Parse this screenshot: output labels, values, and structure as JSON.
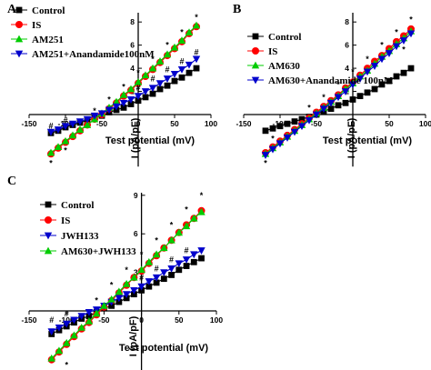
{
  "figure": {
    "panels": [
      "A",
      "B",
      "C"
    ]
  },
  "chart_data": [
    {
      "panel": "A",
      "type": "line",
      "xlabel": "Test potential (mV)",
      "ylabel": "I (pA/pF)",
      "xticks": [
        -150,
        -100,
        -50,
        0,
        50,
        100
      ],
      "yticks": [
        2,
        4,
        6,
        8
      ],
      "xlim": [
        -150,
        100
      ],
      "ylim": [
        -4.5,
        8.8
      ],
      "x": [
        -120,
        -110,
        -100,
        -90,
        -80,
        -70,
        -60,
        -50,
        -40,
        -30,
        -20,
        -10,
        0,
        10,
        20,
        30,
        40,
        50,
        60,
        70,
        80
      ],
      "series": [
        {
          "name": "Control",
          "color": "#000000",
          "marker": "square",
          "values": [
            -1.6,
            -1.4,
            -1.1,
            -0.9,
            -0.7,
            -0.5,
            -0.3,
            -0.1,
            0.2,
            0.4,
            0.6,
            0.9,
            1.2,
            1.5,
            1.8,
            2.2,
            2.5,
            2.9,
            3.2,
            3.6,
            4.0
          ]
        },
        {
          "name": "IS",
          "color": "#ff0000",
          "marker": "circle",
          "values": [
            -3.4,
            -2.9,
            -2.4,
            -1.9,
            -1.4,
            -0.9,
            -0.4,
            0.0,
            0.5,
            1.0,
            1.6,
            2.1,
            2.7,
            3.3,
            3.9,
            4.5,
            5.1,
            5.7,
            6.3,
            7.0,
            7.6
          ]
        },
        {
          "name": "AM251",
          "color": "#00cc00",
          "marker": "triangle-up",
          "values": [
            -3.3,
            -2.8,
            -2.3,
            -1.8,
            -1.3,
            -0.9,
            -0.4,
            0.1,
            0.6,
            1.1,
            1.7,
            2.2,
            2.8,
            3.4,
            4.0,
            4.6,
            5.2,
            5.8,
            6.4,
            7.1,
            7.7
          ]
        },
        {
          "name": "AM251+Anandamide100nM",
          "color": "#0000cc",
          "marker": "triangle-down",
          "values": [
            -1.5,
            -1.3,
            -1.0,
            -0.8,
            -0.6,
            -0.4,
            -0.1,
            0.1,
            0.4,
            0.7,
            1.0,
            1.3,
            1.6,
            2.0,
            2.3,
            2.7,
            3.1,
            3.5,
            3.9,
            4.3,
            4.8
          ]
        }
      ],
      "annotations": [
        {
          "text": "#",
          "x": -120,
          "y": -1.0
        },
        {
          "text": "#",
          "x": -100,
          "y": -0.5
        },
        {
          "text": "*",
          "x": -120,
          "y": -4.2
        },
        {
          "text": "*",
          "x": -100,
          "y": -3.1
        },
        {
          "text": "*",
          "x": -60,
          "y": 0.3
        },
        {
          "text": "*",
          "x": -40,
          "y": 1.3
        },
        {
          "text": "*",
          "x": -20,
          "y": 2.4
        },
        {
          "text": "*",
          "x": 0,
          "y": 3.6
        },
        {
          "text": "*",
          "x": 20,
          "y": 4.8
        },
        {
          "text": "*",
          "x": 40,
          "y": 6.0
        },
        {
          "text": "*",
          "x": 60,
          "y": 7.1
        },
        {
          "text": "*",
          "x": 80,
          "y": 8.4
        },
        {
          "text": "#",
          "x": 0,
          "y": 2.3
        },
        {
          "text": "#",
          "x": 20,
          "y": 3.1
        },
        {
          "text": "#",
          "x": 40,
          "y": 3.9
        },
        {
          "text": "#",
          "x": 60,
          "y": 4.6
        },
        {
          "text": "#",
          "x": 80,
          "y": 5.4
        }
      ]
    },
    {
      "panel": "B",
      "type": "line",
      "xlabel": "Test potential (mV)",
      "ylabel": "I (pA/pF)",
      "xticks": [
        -150,
        -100,
        -50,
        0,
        50,
        100
      ],
      "yticks": [
        2,
        4,
        6,
        8
      ],
      "xlim": [
        -150,
        100
      ],
      "ylim": [
        -4.5,
        8.8
      ],
      "x": [
        -120,
        -110,
        -100,
        -90,
        -80,
        -70,
        -60,
        -50,
        -40,
        -30,
        -20,
        -10,
        0,
        10,
        20,
        30,
        40,
        50,
        60,
        70,
        80
      ],
      "series": [
        {
          "name": "Control",
          "color": "#000000",
          "marker": "square",
          "values": [
            -1.4,
            -1.2,
            -1.0,
            -0.8,
            -0.6,
            -0.4,
            -0.2,
            0.0,
            0.3,
            0.5,
            0.8,
            1.0,
            1.3,
            1.6,
            1.9,
            2.2,
            2.6,
            2.9,
            3.3,
            3.6,
            4.0
          ]
        },
        {
          "name": "IS",
          "color": "#ff0000",
          "marker": "circle",
          "values": [
            -3.3,
            -2.8,
            -2.3,
            -1.8,
            -1.3,
            -0.8,
            -0.3,
            0.2,
            0.7,
            1.2,
            1.7,
            2.3,
            2.8,
            3.4,
            4.0,
            4.6,
            5.1,
            5.7,
            6.3,
            6.8,
            7.4
          ]
        },
        {
          "name": "AM630",
          "color": "#00cc00",
          "marker": "triangle-up",
          "values": [
            -3.4,
            -2.9,
            -2.4,
            -1.9,
            -1.4,
            -0.9,
            -0.4,
            0.1,
            0.6,
            1.1,
            1.6,
            2.2,
            2.7,
            3.3,
            3.8,
            4.4,
            5.0,
            5.5,
            6.1,
            6.6,
            7.2
          ]
        },
        {
          "name": "AM630+Anandamide 100nM",
          "color": "#0000cc",
          "marker": "triangle-down",
          "values": [
            -3.5,
            -3.0,
            -2.5,
            -2.0,
            -1.5,
            -1.0,
            -0.5,
            0.0,
            0.5,
            1.0,
            1.5,
            2.0,
            2.6,
            3.1,
            3.7,
            4.2,
            4.8,
            5.3,
            5.9,
            6.4,
            7.0
          ]
        }
      ],
      "annotations": [
        {
          "text": "*",
          "x": -120,
          "y": -4.2
        },
        {
          "text": "*",
          "x": -110,
          "y": -2.1
        },
        {
          "text": "*",
          "x": -60,
          "y": 0.6
        },
        {
          "text": "*",
          "x": -40,
          "y": 1.5
        },
        {
          "text": "*",
          "x": -20,
          "y": 2.6
        },
        {
          "text": "*",
          "x": 0,
          "y": 3.7
        },
        {
          "text": "*",
          "x": 20,
          "y": 4.8
        },
        {
          "text": "*",
          "x": 40,
          "y": 6.0
        },
        {
          "text": "*",
          "x": 60,
          "y": 7.1
        },
        {
          "text": "*",
          "x": 80,
          "y": 8.2
        },
        {
          "text": "*",
          "x": 70,
          "y": 5.6
        }
      ]
    },
    {
      "panel": "C",
      "type": "line",
      "xlabel": "Test potential (mV)",
      "ylabel": "I (pA/pF)",
      "xticks": [
        -150,
        -100,
        -50,
        0,
        50,
        100
      ],
      "yticks": [
        3,
        6,
        9
      ],
      "xlim": [
        -150,
        100
      ],
      "ylim": [
        -5.5,
        9.2
      ],
      "x": [
        -120,
        -110,
        -100,
        -90,
        -80,
        -70,
        -60,
        -50,
        -40,
        -30,
        -20,
        -10,
        0,
        10,
        20,
        30,
        40,
        50,
        60,
        70,
        80
      ],
      "series": [
        {
          "name": "Control",
          "color": "#000000",
          "marker": "square",
          "values": [
            -1.8,
            -1.5,
            -1.2,
            -0.9,
            -0.6,
            -0.4,
            -0.1,
            0.2,
            0.4,
            0.7,
            1.0,
            1.3,
            1.6,
            1.9,
            2.2,
            2.5,
            2.8,
            3.2,
            3.5,
            3.8,
            4.1
          ]
        },
        {
          "name": "IS",
          "color": "#ff0000",
          "marker": "circle",
          "values": [
            -3.8,
            -3.2,
            -2.6,
            -2.0,
            -1.4,
            -0.9,
            -0.3,
            0.3,
            0.8,
            1.4,
            2.0,
            2.6,
            3.1,
            3.7,
            4.3,
            4.9,
            5.5,
            6.1,
            6.7,
            7.2,
            7.8
          ]
        },
        {
          "name": "JWH133",
          "color": "#0000cc",
          "marker": "triangle-down",
          "values": [
            -1.6,
            -1.3,
            -1.0,
            -0.7,
            -0.4,
            -0.1,
            0.1,
            0.4,
            0.7,
            1.0,
            1.3,
            1.6,
            1.9,
            2.3,
            2.6,
            3.0,
            3.3,
            3.7,
            4.0,
            4.4,
            4.7
          ]
        },
        {
          "name": "AM630+JWH133",
          "color": "#00cc00",
          "marker": "triangle-up",
          "values": [
            -3.7,
            -3.1,
            -2.5,
            -1.9,
            -1.3,
            -0.8,
            -0.2,
            0.4,
            0.9,
            1.5,
            2.1,
            2.6,
            3.2,
            3.8,
            4.4,
            4.9,
            5.5,
            6.1,
            6.6,
            7.2,
            7.7
          ]
        }
      ],
      "annotations": [
        {
          "text": "#",
          "x": -120,
          "y": -0.7
        },
        {
          "text": "#",
          "x": -100,
          "y": -0.2
        },
        {
          "text": "*",
          "x": -120,
          "y": -5.2
        },
        {
          "text": "*",
          "x": -100,
          "y": -4.2
        },
        {
          "text": "*",
          "x": -60,
          "y": 0.8
        },
        {
          "text": "*",
          "x": -40,
          "y": 2.0
        },
        {
          "text": "*",
          "x": -20,
          "y": 3.2
        },
        {
          "text": "*",
          "x": 0,
          "y": 4.4
        },
        {
          "text": "*",
          "x": 20,
          "y": 5.5
        },
        {
          "text": "*",
          "x": 40,
          "y": 6.7
        },
        {
          "text": "*",
          "x": 60,
          "y": 7.9
        },
        {
          "text": "*",
          "x": 80,
          "y": 9.0
        },
        {
          "text": "#",
          "x": 0,
          "y": 2.6
        },
        {
          "text": "#",
          "x": 20,
          "y": 3.3
        },
        {
          "text": "#",
          "x": 40,
          "y": 4.0
        },
        {
          "text": "#",
          "x": 60,
          "y": 4.7
        }
      ]
    }
  ]
}
